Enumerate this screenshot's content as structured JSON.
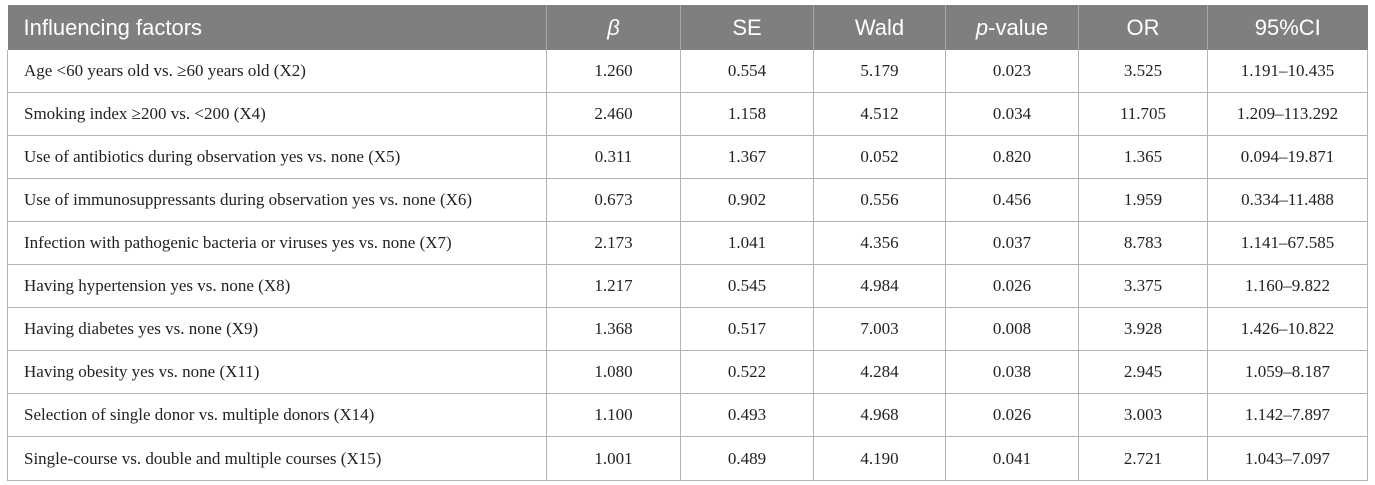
{
  "header": {
    "factor": "Influencing factors",
    "beta": "β",
    "se": "SE",
    "wald": "Wald",
    "p_italic": "p",
    "p_rest": "-value",
    "or": "OR",
    "ci": "95%CI"
  },
  "rows": [
    {
      "factor": "Age <60 years old vs. ≥60 years old (X2)",
      "beta": "1.260",
      "se": "0.554",
      "wald": "5.179",
      "p": "0.023",
      "or": "3.525",
      "ci": "1.191–10.435"
    },
    {
      "factor": "Smoking index ≥200 vs. <200 (X4)",
      "beta": "2.460",
      "se": "1.158",
      "wald": "4.512",
      "p": "0.034",
      "or": "11.705",
      "ci": "1.209–113.292"
    },
    {
      "factor": "Use of antibiotics during observation yes vs. none (X5)",
      "beta": "0.311",
      "se": "1.367",
      "wald": "0.052",
      "p": "0.820",
      "or": "1.365",
      "ci": "0.094–19.871"
    },
    {
      "factor": "Use of immunosuppressants during observation yes vs. none (X6)",
      "beta": "0.673",
      "se": "0.902",
      "wald": "0.556",
      "p": "0.456",
      "or": "1.959",
      "ci": "0.334–11.488"
    },
    {
      "factor": "Infection with pathogenic bacteria or viruses yes vs. none (X7)",
      "beta": "2.173",
      "se": "1.041",
      "wald": "4.356",
      "p": "0.037",
      "or": "8.783",
      "ci": "1.141–67.585"
    },
    {
      "factor": "Having hypertension yes vs. none (X8)",
      "beta": "1.217",
      "se": "0.545",
      "wald": "4.984",
      "p": "0.026",
      "or": "3.375",
      "ci": "1.160–9.822"
    },
    {
      "factor": "Having diabetes yes vs. none (X9)",
      "beta": "1.368",
      "se": "0.517",
      "wald": "7.003",
      "p": "0.008",
      "or": "3.928",
      "ci": "1.426–10.822"
    },
    {
      "factor": "Having obesity yes vs. none (X11)",
      "beta": "1.080",
      "se": "0.522",
      "wald": "4.284",
      "p": "0.038",
      "or": "2.945",
      "ci": "1.059–8.187"
    },
    {
      "factor": "Selection of single donor vs. multiple donors (X14)",
      "beta": "1.100",
      "se": "0.493",
      "wald": "4.968",
      "p": "0.026",
      "or": "3.003",
      "ci": "1.142–7.897"
    },
    {
      "factor": "Single-course vs. double and multiple courses (X15)",
      "beta": "1.001",
      "se": "0.489",
      "wald": "4.190",
      "p": "0.041",
      "or": "2.721",
      "ci": "1.043–7.097"
    }
  ]
}
